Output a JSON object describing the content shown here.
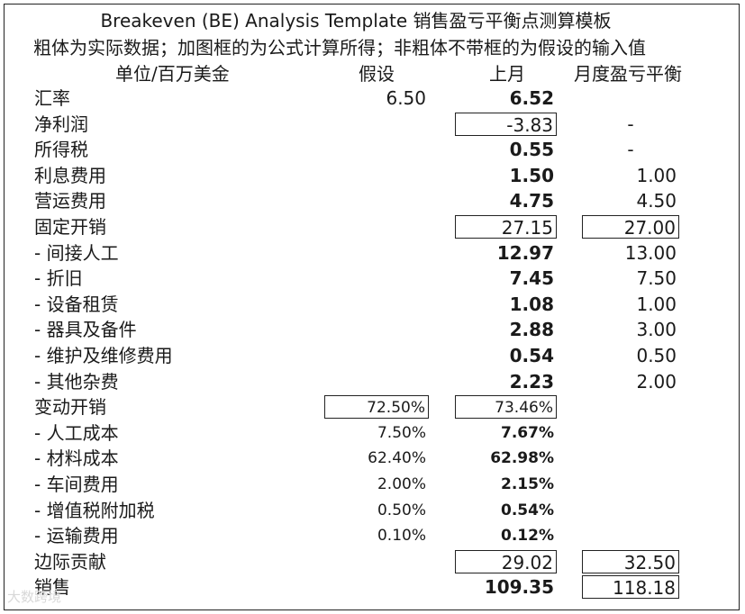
{
  "title": "Breakeven (BE) Analysis Template 销售盈亏平衡点测算模板",
  "subtitle": "粗体为实际数据；加图框的为公式计算所得；非粗体不带框的为假设的输入值",
  "headers": {
    "unit": "单位/百万美金",
    "assumption": "假设",
    "last_month": "上月",
    "monthly_be": "月度盈亏平衡"
  },
  "rows": [
    {
      "label": "汇率",
      "assume": "6.50",
      "last": "6.52",
      "be": ""
    },
    {
      "label": "净利润",
      "assume": "",
      "last": "-3.83",
      "be": "-"
    },
    {
      "label": "所得税",
      "assume": "",
      "last": "0.55",
      "be": "-"
    },
    {
      "label": "利息费用",
      "assume": "",
      "last": "1.50",
      "be": "1.00"
    },
    {
      "label": "营运费用",
      "assume": "",
      "last": "4.75",
      "be": "4.50"
    },
    {
      "label": "固定开销",
      "assume": "",
      "last": "27.15",
      "be": "27.00"
    },
    {
      "label": " - 间接人工",
      "assume": "",
      "last": "12.97",
      "be": "13.00"
    },
    {
      "label": " - 折旧",
      "assume": "",
      "last": "7.45",
      "be": "7.50"
    },
    {
      "label": " - 设备租赁",
      "assume": "",
      "last": "1.08",
      "be": "1.00"
    },
    {
      "label": " - 器具及备件",
      "assume": "",
      "last": "2.88",
      "be": "3.00"
    },
    {
      "label": " - 维护及维修费用",
      "assume": "",
      "last": "0.54",
      "be": "0.50"
    },
    {
      "label": " - 其他杂费",
      "assume": "",
      "last": "2.23",
      "be": "2.00"
    },
    {
      "label": "变动开销",
      "assume": "72.50%",
      "last": "73.46%",
      "be": ""
    },
    {
      "label": " - 人工成本",
      "assume": "7.50%",
      "last": "7.67%",
      "be": ""
    },
    {
      "label": " - 材料成本",
      "assume": "62.40%",
      "last": "62.98%",
      "be": ""
    },
    {
      "label": " - 车间费用",
      "assume": "2.00%",
      "last": "2.15%",
      "be": ""
    },
    {
      "label": " - 增值税附加税",
      "assume": "0.50%",
      "last": "0.54%",
      "be": ""
    },
    {
      "label": " - 运输费用",
      "assume": "0.10%",
      "last": "0.12%",
      "be": ""
    },
    {
      "label": "边际贡献",
      "assume": "",
      "last": "29.02",
      "be": "32.50"
    },
    {
      "label": "销售",
      "assume": "",
      "last": "109.35",
      "be": "118.18"
    }
  ],
  "watermark": "大数跨境"
}
